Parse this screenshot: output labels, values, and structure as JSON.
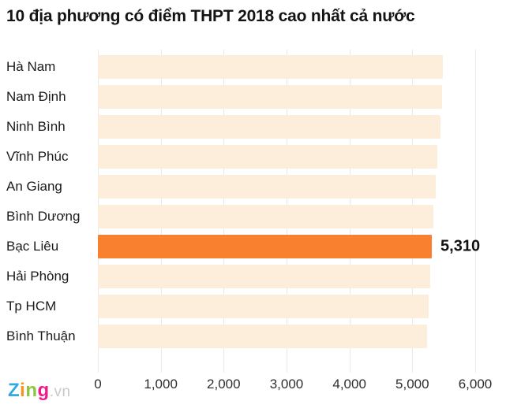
{
  "title": "10 địa phương có điểm THPT 2018 cao nhất cả nước",
  "chart_data": {
    "type": "bar",
    "orientation": "horizontal",
    "title": "10 địa phương có điểm THPT 2018 cao nhất cả nước",
    "categories": [
      "Hà Nam",
      "Nam Định",
      "Ninh Bình",
      "Vĩnh Phúc",
      "An Giang",
      "Bình Dương",
      "Bạc Liêu",
      "Hải Phòng",
      "Tp HCM",
      "Bình Thuận"
    ],
    "values": [
      5480,
      5470,
      5450,
      5400,
      5370,
      5340,
      5310,
      5280,
      5260,
      5240
    ],
    "highlight_index": 6,
    "highlight_label": "5,310",
    "xlabel": "",
    "ylabel": "",
    "xlim": [
      0,
      6000
    ],
    "tick_labels": [
      "0",
      "1,000",
      "2,000",
      "3,000",
      "4,000",
      "5,000",
      "6,000"
    ],
    "grid": true,
    "legend": false,
    "bar_color": "#FDEEDC",
    "highlight_color": "#F8802E",
    "gridline_color": "#E9E9E9"
  },
  "logo": {
    "letters": [
      {
        "char": "Z",
        "color": "#35A8DF"
      },
      {
        "char": "i",
        "color": "#F7941E"
      },
      {
        "char": "n",
        "color": "#8CC63E"
      },
      {
        "char": "g",
        "color": "#EC1C8D"
      }
    ],
    "suffix": ".vn",
    "suffix_color": "#C9C9C9"
  }
}
